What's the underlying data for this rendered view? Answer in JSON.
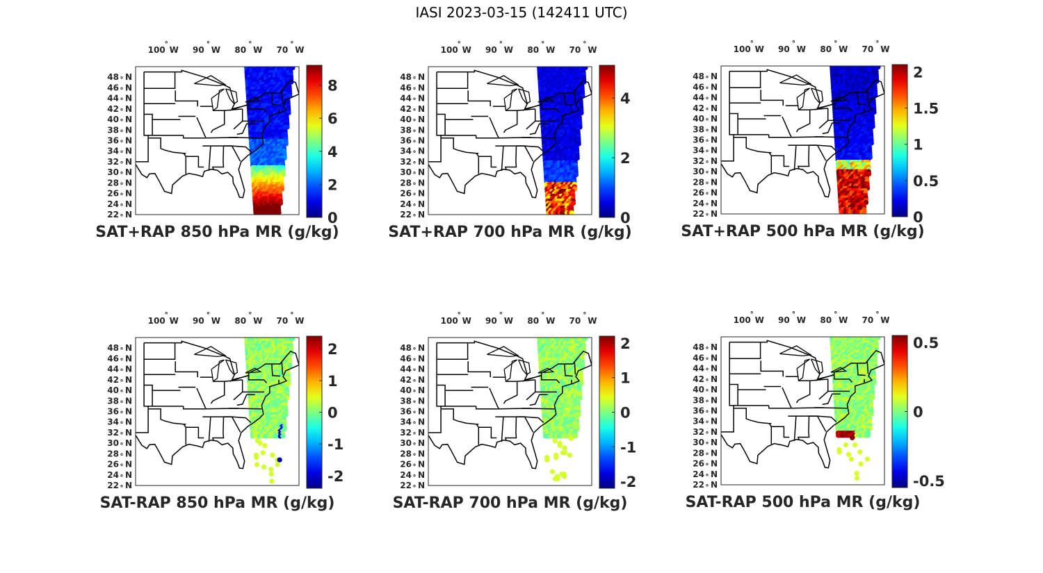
{
  "figure_title": "IASI 2023-03-15 (142411 UTC)",
  "chart_data": {
    "type": "map",
    "projection_extent": {
      "lon": [
        -106,
        -67
      ],
      "lat": [
        22,
        50
      ]
    },
    "lon_ticks": [
      {
        "value": -100,
        "label": "100",
        "hem": "W"
      },
      {
        "value": -90,
        "label": "90",
        "hem": "W"
      },
      {
        "value": -80,
        "label": "80",
        "hem": "W"
      },
      {
        "value": -70,
        "label": "70",
        "hem": "W"
      }
    ],
    "lat_ticks": [
      {
        "value": 48,
        "label": "48",
        "hem": "N"
      },
      {
        "value": 46,
        "label": "46",
        "hem": "N"
      },
      {
        "value": 44,
        "label": "44",
        "hem": "N"
      },
      {
        "value": 42,
        "label": "42",
        "hem": "N"
      },
      {
        "value": 40,
        "label": "40",
        "hem": "N"
      },
      {
        "value": 38,
        "label": "38",
        "hem": "N"
      },
      {
        "value": 36,
        "label": "36",
        "hem": "N"
      },
      {
        "value": 34,
        "label": "34",
        "hem": "N"
      },
      {
        "value": 32,
        "label": "32",
        "hem": "N"
      },
      {
        "value": 30,
        "label": "30",
        "hem": "N"
      },
      {
        "value": 28,
        "label": "28",
        "hem": "N"
      },
      {
        "value": 26,
        "label": "26",
        "hem": "N"
      },
      {
        "value": 24,
        "label": "24",
        "hem": "N"
      },
      {
        "value": 22,
        "label": "22",
        "hem": "N"
      }
    ],
    "panels": [
      {
        "id": "p850sum",
        "title": "SAT+RAP 850 hPa MR (g/kg)",
        "kind": "sum",
        "clim": [
          0,
          9.2
        ],
        "ticks": [
          "0",
          "2",
          "4",
          "6",
          "8"
        ],
        "tick_values": [
          0,
          2,
          4,
          6,
          8
        ],
        "level": 850
      },
      {
        "id": "p700sum",
        "title": "SAT+RAP 700 hPa MR (g/kg)",
        "kind": "sum",
        "clim": [
          0,
          5.1
        ],
        "ticks": [
          "0",
          "2",
          "4"
        ],
        "tick_values": [
          0,
          2,
          4
        ],
        "level": 700
      },
      {
        "id": "p500sum",
        "title": "SAT+RAP 500 hPa MR (g/kg)",
        "kind": "sum",
        "clim": [
          0,
          2.1
        ],
        "ticks": [
          "0",
          "0.5",
          "1",
          "1.5",
          "2"
        ],
        "tick_values": [
          0,
          0.5,
          1,
          1.5,
          2
        ],
        "level": 500
      },
      {
        "id": "p850diff",
        "title": "SAT-RAP 850 hPa MR (g/kg)",
        "kind": "diff",
        "clim": [
          -2.4,
          2.4
        ],
        "ticks": [
          "-2",
          "-1",
          "0",
          "1",
          "2"
        ],
        "tick_values": [
          -2,
          -1,
          0,
          1,
          2
        ],
        "level": 850
      },
      {
        "id": "p700diff",
        "title": "SAT-RAP 700 hPa MR (g/kg)",
        "kind": "diff",
        "clim": [
          -2.2,
          2.2
        ],
        "ticks": [
          "-2",
          "-1",
          "0",
          "1",
          "2"
        ],
        "tick_values": [
          -2,
          -1,
          0,
          1,
          2
        ],
        "level": 700
      },
      {
        "id": "p500diff",
        "title": "SAT-RAP 500 hPa MR (g/kg)",
        "kind": "diff",
        "clim": [
          -0.55,
          0.55
        ],
        "ticks": [
          "-0.5",
          "0",
          "0.5"
        ],
        "tick_values": [
          -0.5,
          0,
          0.5
        ],
        "level": 500
      }
    ]
  }
}
